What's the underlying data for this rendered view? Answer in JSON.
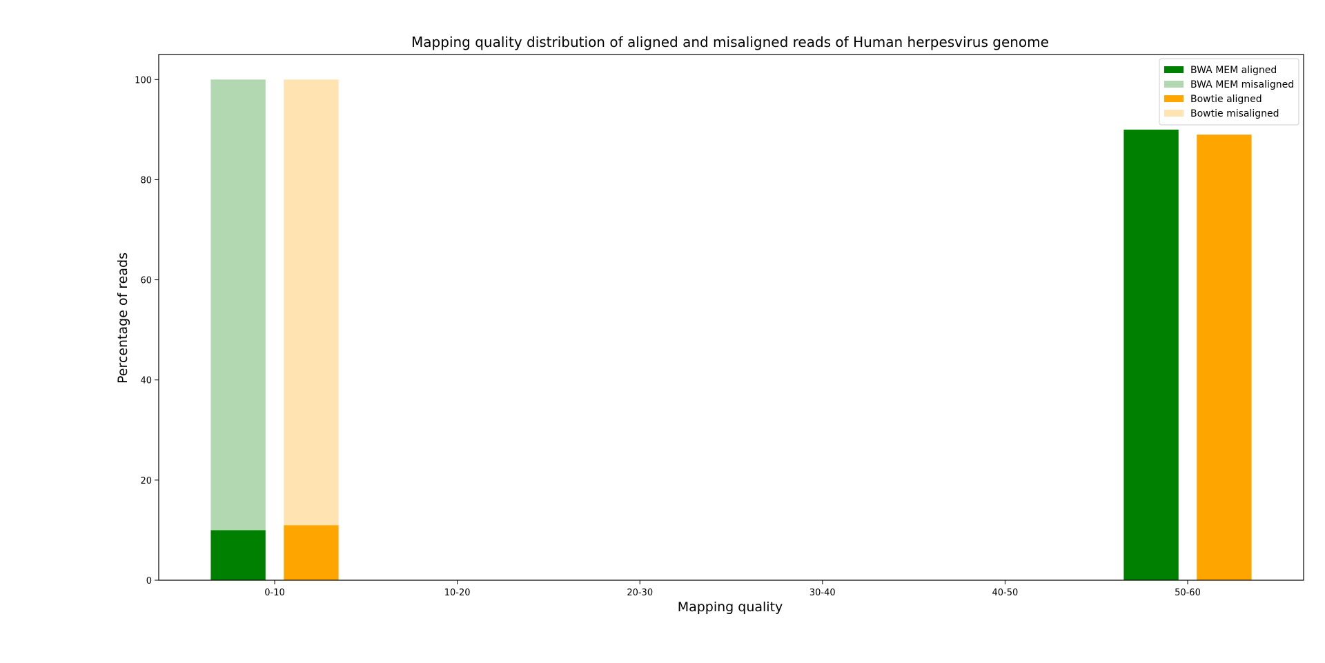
{
  "chart_data": {
    "type": "bar",
    "title": "Mapping quality distribution of aligned and misaligned reads of Human herpesvirus genome",
    "xlabel": "Mapping quality",
    "ylabel": "Percentage of reads",
    "ylim": [
      0,
      105
    ],
    "yticks": [
      0,
      20,
      40,
      60,
      80,
      100
    ],
    "categories": [
      "0-10",
      "10-20",
      "20-30",
      "30-40",
      "40-50",
      "50-60"
    ],
    "grid": false,
    "legend_position": "top-right",
    "stacked_pairs": true,
    "series": [
      {
        "name": "BWA MEM aligned",
        "color": "#008000",
        "group": "bwa",
        "layer": "base",
        "values": [
          10,
          0,
          0,
          0,
          0,
          90
        ]
      },
      {
        "name": "BWA MEM misaligned",
        "color": "#b2d8b2",
        "group": "bwa",
        "layer": "stack",
        "values": [
          90,
          0,
          0,
          0,
          0,
          0
        ]
      },
      {
        "name": "Bowtie aligned",
        "color": "#ffa500",
        "group": "bowtie",
        "layer": "base",
        "values": [
          11,
          0,
          0,
          0,
          0,
          89
        ]
      },
      {
        "name": "Bowtie misaligned",
        "color": "#ffe4b2",
        "group": "bowtie",
        "layer": "stack",
        "values": [
          89,
          0,
          0,
          0,
          0,
          0
        ]
      }
    ]
  }
}
